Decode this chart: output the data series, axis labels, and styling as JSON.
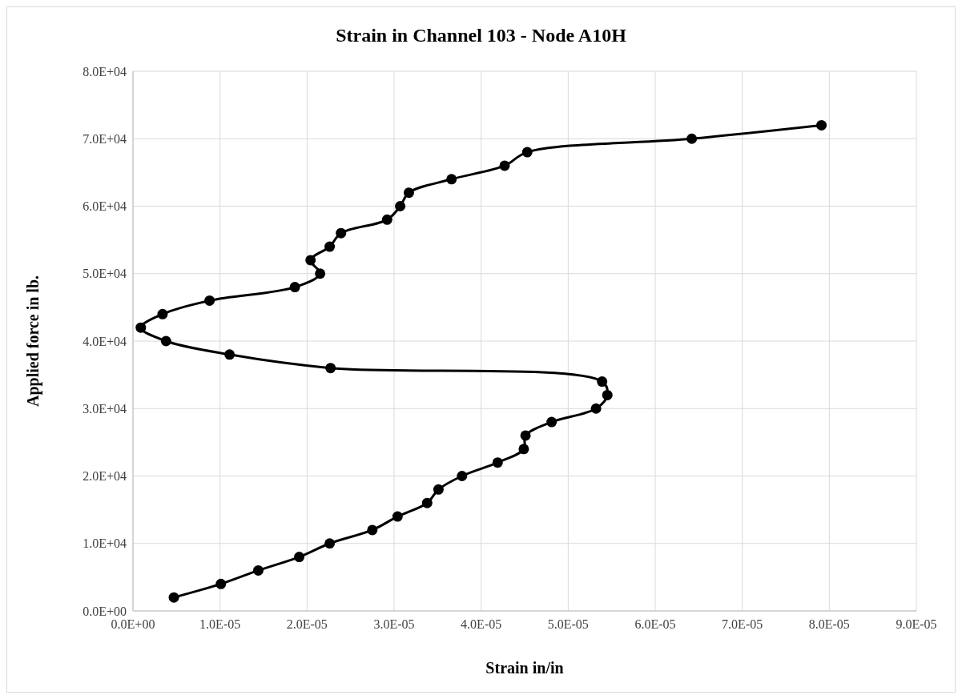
{
  "chart_data": {
    "type": "line",
    "title": "Strain in Channel 103 - Node A10H",
    "xlabel": "Strain in/in",
    "ylabel": "Applied force in lb.",
    "xlim": [
      0,
      9e-05
    ],
    "ylim": [
      0,
      80000
    ],
    "xticks": [
      {
        "value": 0,
        "label": "0.0E+00"
      },
      {
        "value": 1e-05,
        "label": "1.0E-05"
      },
      {
        "value": 2e-05,
        "label": "2.0E-05"
      },
      {
        "value": 3e-05,
        "label": "3.0E-05"
      },
      {
        "value": 4e-05,
        "label": "4.0E-05"
      },
      {
        "value": 5e-05,
        "label": "5.0E-05"
      },
      {
        "value": 6e-05,
        "label": "6.0E-05"
      },
      {
        "value": 7e-05,
        "label": "7.0E-05"
      },
      {
        "value": 8e-05,
        "label": "8.0E-05"
      },
      {
        "value": 9e-05,
        "label": "9.0E-05"
      }
    ],
    "yticks": [
      {
        "value": 0,
        "label": "0.0E+00"
      },
      {
        "value": 10000,
        "label": "1.0E+04"
      },
      {
        "value": 20000,
        "label": "2.0E+04"
      },
      {
        "value": 30000,
        "label": "3.0E+04"
      },
      {
        "value": 40000,
        "label": "4.0E+04"
      },
      {
        "value": 50000,
        "label": "5.0E+04"
      },
      {
        "value": 60000,
        "label": "6.0E+04"
      },
      {
        "value": 70000,
        "label": "7.0E+04"
      },
      {
        "value": 80000,
        "label": "8.0E+04"
      }
    ],
    "grid": true,
    "marker": "circle",
    "line_style": "solid",
    "series": [
      {
        "color": "#000000",
        "x": [
          4.7e-06,
          1.01e-05,
          1.44e-05,
          1.91e-05,
          2.26e-05,
          2.75e-05,
          3.04e-05,
          3.38e-05,
          3.51e-05,
          3.78e-05,
          4.19e-05,
          4.49e-05,
          4.51e-05,
          4.81e-05,
          5.32e-05,
          5.45e-05,
          5.39e-05,
          2.27e-05,
          1.11e-05,
          3.8e-06,
          9e-07,
          3.4e-06,
          8.8e-06,
          1.86e-05,
          2.15e-05,
          2.04e-05,
          2.26e-05,
          2.39e-05,
          2.92e-05,
          3.07e-05,
          3.17e-05,
          3.66e-05,
          4.27e-05,
          4.53e-05,
          6.42e-05,
          7.91e-05
        ],
        "values": [
          2000,
          4000,
          6000,
          8000,
          10000,
          12000,
          14000,
          16000,
          18000,
          20000,
          22000,
          24000,
          26000,
          28000,
          30000,
          32000,
          34000,
          36000,
          38000,
          40000,
          42000,
          44000,
          46000,
          48000,
          50000,
          52000,
          54000,
          56000,
          58000,
          60000,
          62000,
          64000,
          66000,
          68000,
          70000,
          72000
        ]
      }
    ]
  }
}
